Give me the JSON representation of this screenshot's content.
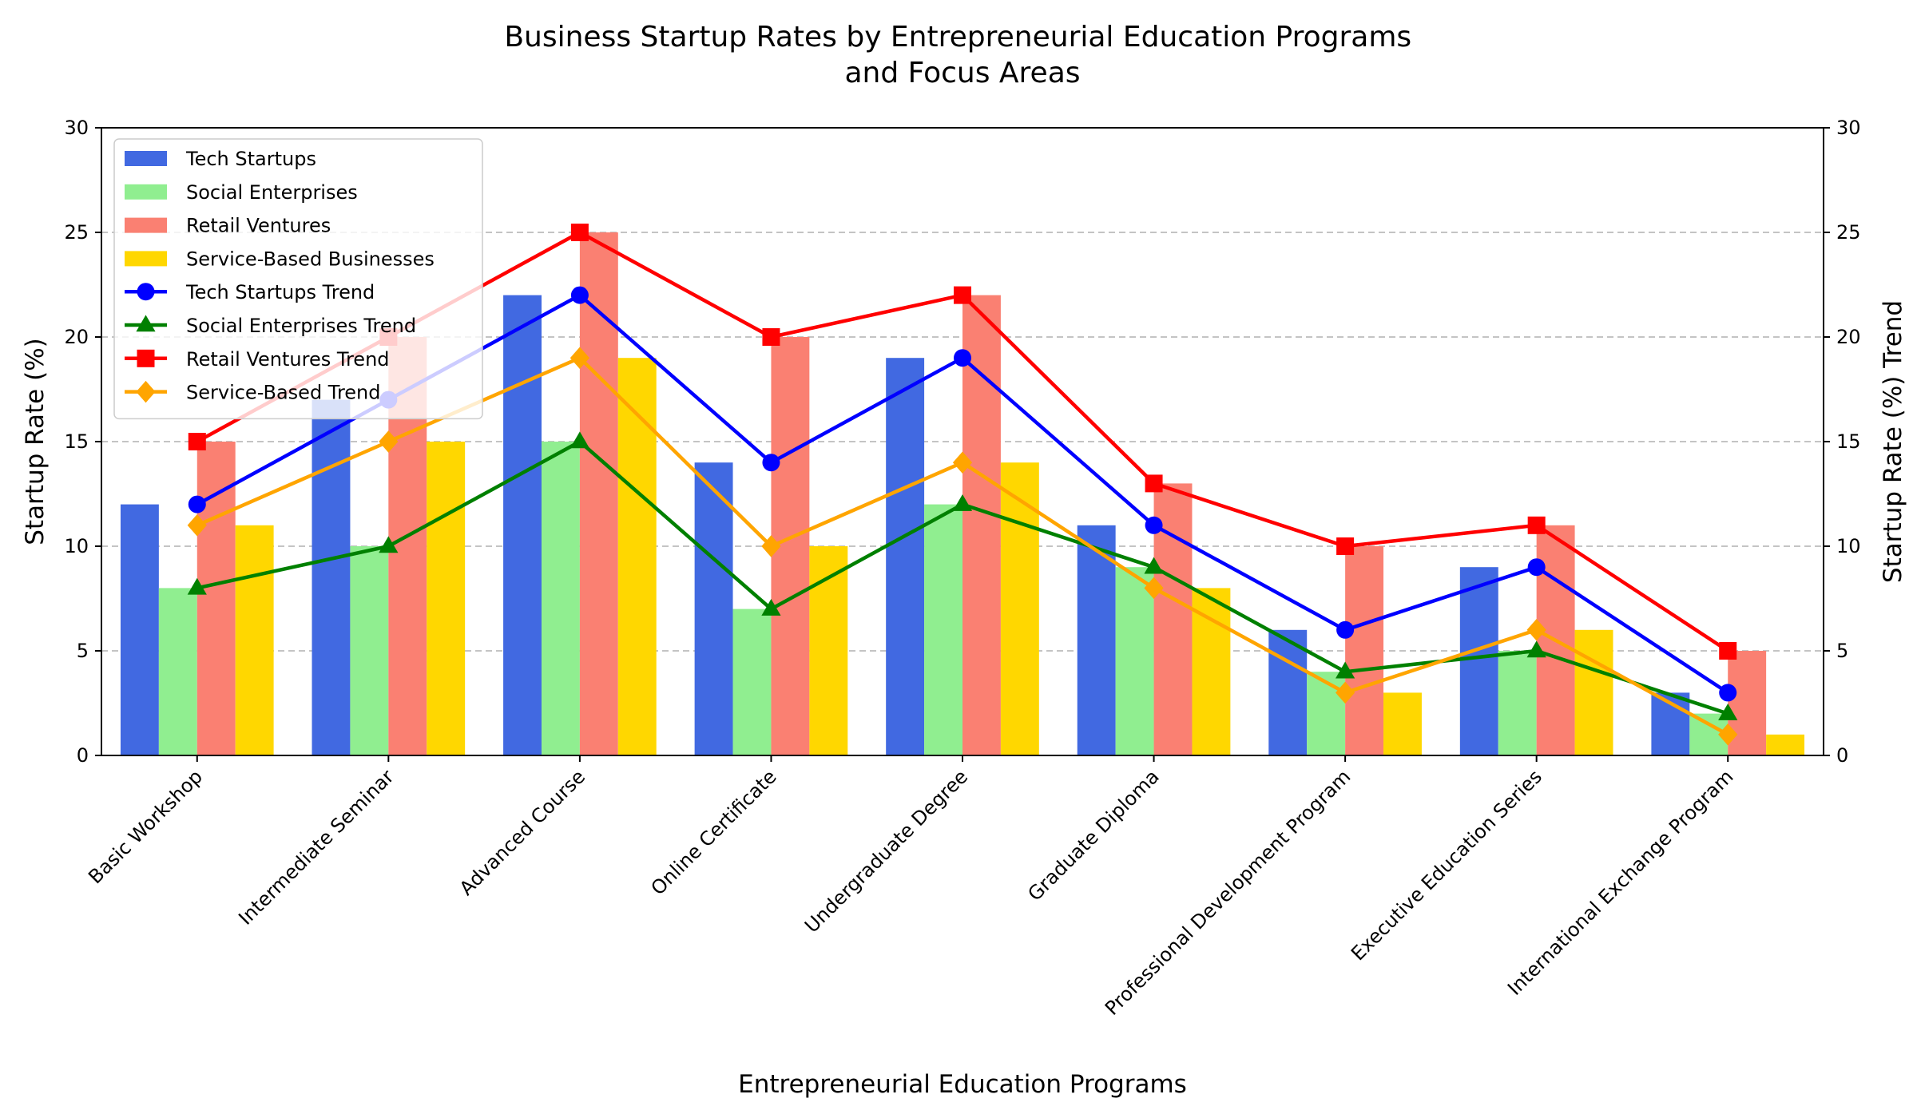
{
  "chart_data": {
    "type": "bar",
    "title": [
      "Business Startup Rates by Entrepreneurial Education Programs",
      "and Focus Areas"
    ],
    "xlabel": "Entrepreneurial Education Programs",
    "ylabel": "Startup Rate (%)",
    "ylabel_right": "Startup Rate (%) Trend",
    "ylim": [
      0,
      30
    ],
    "yticks": [
      "0",
      "5",
      "10",
      "15",
      "20",
      "25",
      "30"
    ],
    "grid": "horizontal dashed",
    "legend_position": "upper-left",
    "categories": [
      "Basic Workshop",
      "Intermediate Seminar",
      "Advanced Course",
      "Online Certificate",
      "Undergraduate Degree",
      "Graduate Diploma",
      "Professional Development Program",
      "Executive Education Series",
      "International Exchange Program"
    ],
    "series": [
      {
        "name": "Tech Startups",
        "color": "#4169E1",
        "values": [
          12,
          17,
          22,
          14,
          19,
          11,
          6,
          9,
          3
        ]
      },
      {
        "name": "Social Enterprises",
        "color": "#90EE90",
        "values": [
          8,
          10,
          15,
          7,
          12,
          9,
          4,
          5,
          2
        ]
      },
      {
        "name": "Retail Ventures",
        "color": "#FA8072",
        "values": [
          15,
          20,
          25,
          20,
          22,
          13,
          10,
          11,
          5
        ]
      },
      {
        "name": "Service-Based Businesses",
        "color": "#FFD700",
        "values": [
          11,
          15,
          19,
          10,
          14,
          8,
          3,
          6,
          1
        ]
      }
    ],
    "trend_series": [
      {
        "name": "Tech Startups Trend",
        "color": "#0000FF",
        "marker": "circle",
        "values": [
          12,
          17,
          22,
          14,
          19,
          11,
          6,
          9,
          3
        ]
      },
      {
        "name": "Social Enterprises Trend",
        "color": "#008000",
        "marker": "triangle",
        "values": [
          8,
          10,
          15,
          7,
          12,
          9,
          4,
          5,
          2
        ]
      },
      {
        "name": "Retail Ventures Trend",
        "color": "#FF0000",
        "marker": "square",
        "values": [
          15,
          20,
          25,
          20,
          22,
          13,
          10,
          11,
          5
        ]
      },
      {
        "name": "Service-Based Trend",
        "color": "#FFA500",
        "marker": "diamond",
        "values": [
          11,
          15,
          19,
          10,
          14,
          8,
          3,
          6,
          1
        ]
      }
    ]
  }
}
